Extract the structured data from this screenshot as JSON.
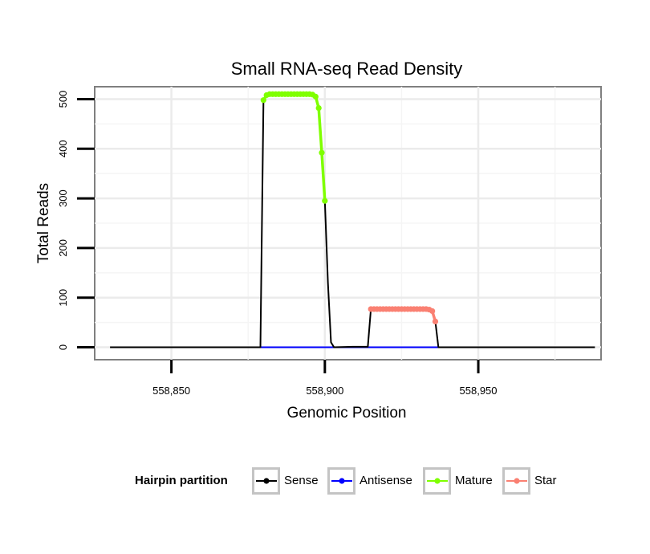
{
  "chart_data": {
    "type": "line",
    "title": "Small RNA-seq Read Density",
    "xlabel": "Genomic Position",
    "ylabel": "Total Reads",
    "xlim": [
      558825,
      558990
    ],
    "ylim": [
      -25,
      525
    ],
    "x_ticks": [
      558850,
      558900,
      558950
    ],
    "x_tick_labels": [
      "558,850",
      "558,900",
      "558,950"
    ],
    "y_ticks": [
      0,
      100,
      200,
      300,
      400,
      500
    ],
    "y_tick_labels": [
      "0",
      "100",
      "200",
      "300",
      "400",
      "500"
    ],
    "grid": true,
    "legend": {
      "title": "Hairpin partition",
      "position": "bottom",
      "entries": [
        {
          "name": "Sense",
          "color": "#000000"
        },
        {
          "name": "Antisense",
          "color": "#0000ff"
        },
        {
          "name": "Mature",
          "color": "#7fff00"
        },
        {
          "name": "Star",
          "color": "#fa8072"
        }
      ]
    },
    "series": [
      {
        "name": "Sense",
        "color": "#000000",
        "points": [
          [
            558830,
            0
          ],
          [
            558879,
            0
          ],
          [
            558880,
            498
          ],
          [
            558881,
            510
          ],
          [
            558896,
            510
          ],
          [
            558897,
            505
          ],
          [
            558898,
            482
          ],
          [
            558899,
            392
          ],
          [
            558900,
            295
          ],
          [
            558901,
            130
          ],
          [
            558902,
            10
          ],
          [
            558903,
            0
          ],
          [
            558909,
            1
          ],
          [
            558914,
            1
          ],
          [
            558915,
            77
          ],
          [
            558934,
            77
          ],
          [
            558935,
            73
          ],
          [
            558936,
            52
          ],
          [
            558937,
            0
          ],
          [
            558988,
            0
          ]
        ]
      },
      {
        "name": "Antisense",
        "color": "#0000ff",
        "points": [
          [
            558879,
            0
          ],
          [
            558938,
            0
          ]
        ]
      },
      {
        "name": "Mature",
        "color": "#7fff00",
        "points": [
          [
            558880,
            498
          ],
          [
            558881,
            508
          ],
          [
            558882,
            510
          ],
          [
            558883,
            510
          ],
          [
            558884,
            510
          ],
          [
            558885,
            510
          ],
          [
            558886,
            510
          ],
          [
            558887,
            510
          ],
          [
            558888,
            510
          ],
          [
            558889,
            510
          ],
          [
            558890,
            510
          ],
          [
            558891,
            510
          ],
          [
            558892,
            510
          ],
          [
            558893,
            510
          ],
          [
            558894,
            510
          ],
          [
            558895,
            510
          ],
          [
            558896,
            509
          ],
          [
            558897,
            505
          ],
          [
            558898,
            482
          ],
          [
            558899,
            392
          ],
          [
            558900,
            295
          ]
        ]
      },
      {
        "name": "Star",
        "color": "#fa8072",
        "points": [
          [
            558915,
            77
          ],
          [
            558916,
            77
          ],
          [
            558917,
            77
          ],
          [
            558918,
            77
          ],
          [
            558919,
            77
          ],
          [
            558920,
            77
          ],
          [
            558921,
            77
          ],
          [
            558922,
            77
          ],
          [
            558923,
            77
          ],
          [
            558924,
            77
          ],
          [
            558925,
            77
          ],
          [
            558926,
            77
          ],
          [
            558927,
            77
          ],
          [
            558928,
            77
          ],
          [
            558929,
            77
          ],
          [
            558930,
            77
          ],
          [
            558931,
            77
          ],
          [
            558932,
            77
          ],
          [
            558933,
            77
          ],
          [
            558934,
            76
          ],
          [
            558935,
            73
          ],
          [
            558936,
            52
          ]
        ]
      }
    ]
  }
}
